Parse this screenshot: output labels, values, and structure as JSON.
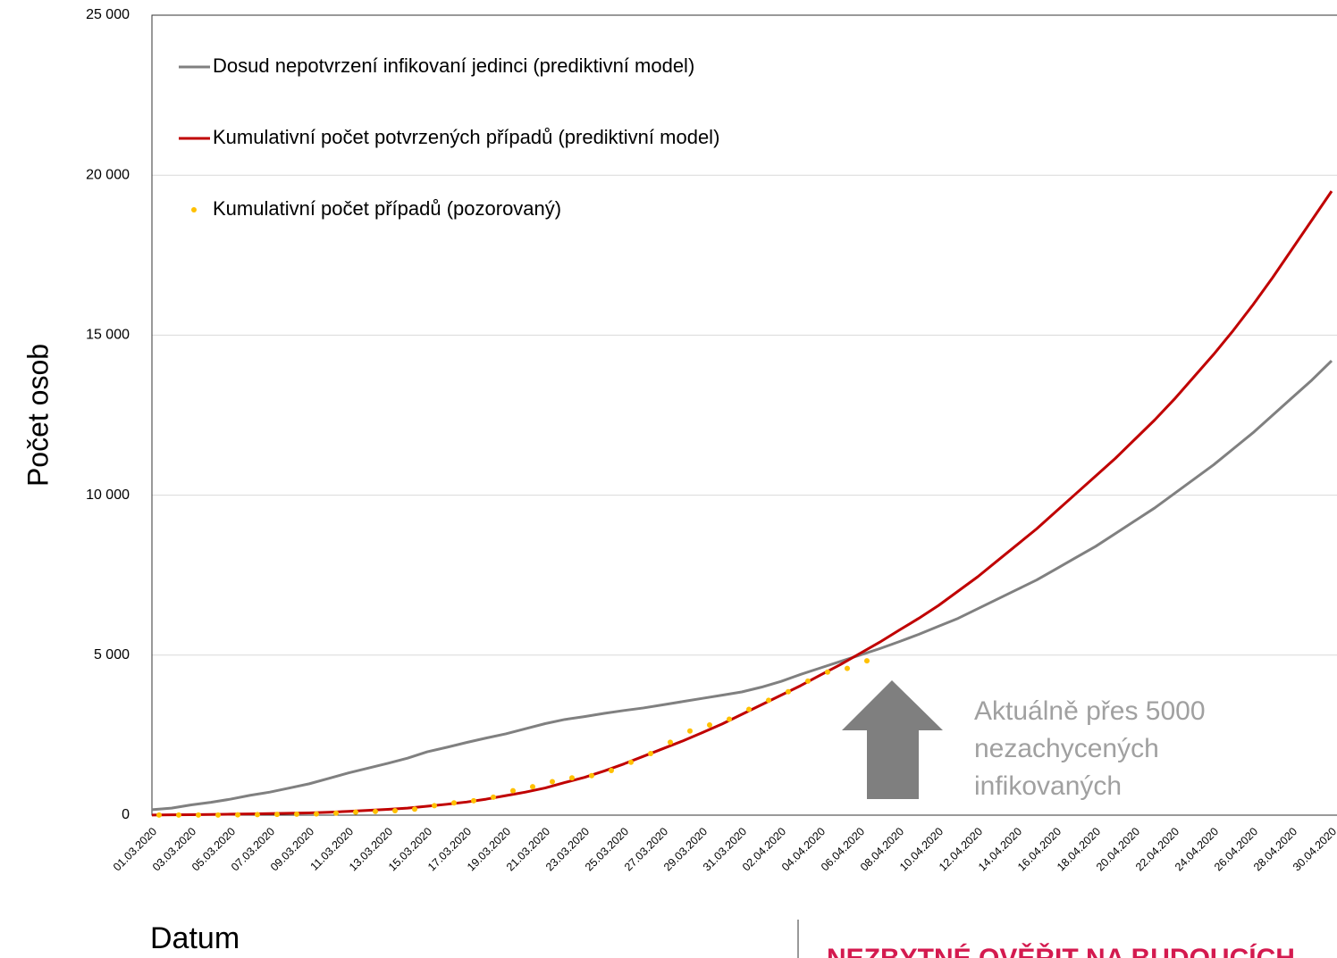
{
  "chart_data": {
    "type": "line",
    "x_label": "Datum",
    "y_label": "Počet osob",
    "annotation": [
      "Aktuálně přes 5000",
      "nezachycených",
      "infikovaných"
    ],
    "footer_note": "NEZBYTNÉ OVĚŘIT NA BUDOUCÍCH",
    "categories": [
      "01.03.2020",
      null,
      "03.03.2020",
      null,
      "05.03.2020",
      null,
      "07.03.2020",
      null,
      "09.03.2020",
      null,
      "11.03.2020",
      null,
      "13.03.2020",
      null,
      "15.03.2020",
      null,
      "17.03.2020",
      null,
      "19.03.2020",
      null,
      "21.03.2020",
      null,
      "23.03.2020",
      null,
      "25.03.2020",
      null,
      "27.03.2020",
      null,
      "29.03.2020",
      null,
      "31.03.2020",
      null,
      "02.04.2020",
      null,
      "04.04.2020",
      null,
      "06.04.2020",
      null,
      "08.04.2020",
      null,
      "10.04.2020",
      null,
      "12.04.2020",
      null,
      "14.04.2020",
      null,
      "16.04.2020",
      null,
      "18.04.2020",
      null,
      "20.04.2020",
      null,
      "22.04.2020",
      null,
      "24.04.2020",
      null,
      "26.04.2020",
      null,
      "28.04.2020",
      null,
      "30.04.2020"
    ],
    "series": [
      {
        "name": "Dosud nepotvrzení infikovaní jedinci (prediktivní model)",
        "color": "#808080",
        "style": "line",
        "values": [
          170,
          220,
          320,
          400,
          500,
          620,
          720,
          850,
          980,
          1150,
          1320,
          1470,
          1620,
          1780,
          1980,
          2120,
          2270,
          2410,
          2540,
          2700,
          2860,
          2990,
          3080,
          3180,
          3270,
          3350,
          3450,
          3550,
          3650,
          3750,
          3850,
          4000,
          4180,
          4400,
          4600,
          4800,
          5000,
          5200,
          5420,
          5650,
          5900,
          6150,
          6450,
          6750,
          7050,
          7350,
          7700,
          8050,
          8400,
          8800,
          9200,
          9600,
          10050,
          10500,
          10950,
          11450,
          11950,
          12500,
          13050,
          13600,
          14200
        ]
      },
      {
        "name": "Kumulativní počet potvrzených případů (prediktivní model)",
        "color": "#c00000",
        "style": "line",
        "values": [
          5,
          10,
          15,
          20,
          30,
          40,
          50,
          60,
          70,
          90,
          120,
          150,
          180,
          220,
          280,
          340,
          410,
          500,
          610,
          720,
          850,
          1020,
          1180,
          1380,
          1600,
          1840,
          2080,
          2320,
          2580,
          2850,
          3150,
          3450,
          3750,
          4050,
          4380,
          4700,
          5050,
          5400,
          5780,
          6150,
          6550,
          7000,
          7450,
          7950,
          8450,
          8950,
          9500,
          10050,
          10600,
          11150,
          11750,
          12350,
          13000,
          13700,
          14400,
          15150,
          15950,
          16800,
          17700,
          18600,
          19500
        ]
      },
      {
        "name": "Kumulativní počet případů (pozorovaný)",
        "color": "#ffc000",
        "style": "dots",
        "values": [
          3,
          3,
          5,
          5,
          12,
          19,
          26,
          32,
          38,
          63,
          94,
          116,
          141,
          189,
          298,
          383,
          450,
          560,
          765,
          889,
          1047,
          1165,
          1236,
          1394,
          1654,
          1925,
          2279,
          2631,
          2817,
          3001,
          3308,
          3589,
          3858,
          4190,
          4472,
          4587,
          4822,
          null,
          null,
          null,
          null,
          null,
          null,
          null,
          null,
          null,
          null,
          null,
          null,
          null,
          null,
          null,
          null,
          null,
          null,
          null,
          null,
          null,
          null,
          null,
          null
        ]
      }
    ],
    "ylim": [
      0,
      25000
    ],
    "yticks": [
      0,
      {
        "value": 5000,
        "label": "5 000"
      },
      {
        "value": 10000,
        "label": "10 000"
      },
      {
        "value": 15000,
        "label": "15 000"
      },
      {
        "value": 20000,
        "label": "20 000"
      },
      {
        "value": 25000,
        "label": "25 000"
      }
    ],
    "grid": true,
    "legend": "top-left"
  }
}
